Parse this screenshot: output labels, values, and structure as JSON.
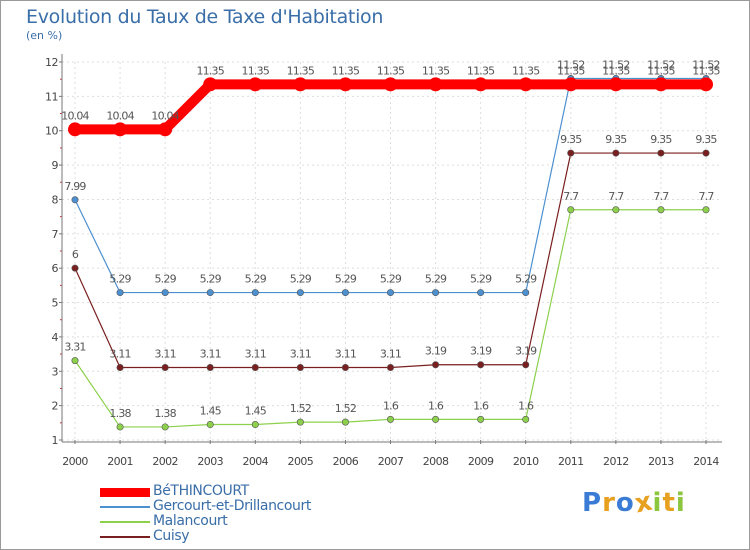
{
  "chart_data": {
    "type": "line",
    "title": "Evolution du Taux de Taxe d'Habitation",
    "ylabel": "(en %)",
    "x": [
      "2000",
      "2001",
      "2002",
      "2003",
      "2004",
      "2005",
      "2006",
      "2007",
      "2008",
      "2009",
      "2010",
      "2011",
      "2012",
      "2013",
      "2014"
    ],
    "yticks": [
      "1",
      "2",
      "3",
      "4",
      "5",
      "6",
      "7",
      "8",
      "9",
      "10",
      "11",
      "12"
    ],
    "ylim": [
      1,
      12
    ],
    "series": [
      {
        "name": "BéTHINCOURT",
        "color": "#ff0000",
        "values": [
          10.04,
          10.04,
          10.04,
          11.35,
          11.35,
          11.35,
          11.35,
          11.35,
          11.35,
          11.35,
          11.35,
          11.35,
          11.35,
          11.35,
          11.35
        ],
        "labels": [
          "10.04",
          "10.04",
          "10.04",
          "11.35",
          "11.35",
          "11.35",
          "11.35",
          "11.35",
          "11.35",
          "11.35",
          "11.35",
          "11.35",
          "11.35",
          "11.35",
          "11.35"
        ]
      },
      {
        "name": "Gercourt-et-Drillancourt",
        "color": "#4d90d0",
        "values": [
          7.99,
          5.29,
          5.29,
          5.29,
          5.29,
          5.29,
          5.29,
          5.29,
          5.29,
          5.29,
          5.29,
          11.52,
          11.52,
          11.52,
          11.52
        ],
        "labels": [
          "7.99",
          "5.29",
          "5.29",
          "5.29",
          "5.29",
          "5.29",
          "5.29",
          "5.29",
          "5.29",
          "5.29",
          "5.29",
          "11.52",
          "11.52",
          "11.52",
          "11.52"
        ]
      },
      {
        "name": "Malancourt",
        "color": "#8cd04c",
        "values": [
          3.31,
          1.38,
          1.38,
          1.45,
          1.45,
          1.52,
          1.52,
          1.6,
          1.6,
          1.6,
          1.6,
          7.7,
          7.7,
          7.7,
          7.7
        ],
        "labels": [
          "3.31",
          "1.38",
          "1.38",
          "1.45",
          "1.45",
          "1.52",
          "1.52",
          "1.6",
          "1.6",
          "1.6",
          "1.6",
          "7.7",
          "7.7",
          "7.7",
          "7.7"
        ]
      },
      {
        "name": "Cuisy",
        "color": "#7a1f1f",
        "values": [
          6,
          3.11,
          3.11,
          3.11,
          3.11,
          3.11,
          3.11,
          3.11,
          3.19,
          3.19,
          3.19,
          9.35,
          9.35,
          9.35,
          9.35
        ],
        "labels": [
          "6",
          "3.11",
          "3.11",
          "3.11",
          "3.11",
          "3.11",
          "3.11",
          "3.11",
          "3.19",
          "3.19",
          "3.19",
          "9.35",
          "9.35",
          "9.35",
          "9.35"
        ]
      }
    ]
  },
  "logo": {
    "letters": [
      "P",
      "r",
      "o",
      "x",
      "i",
      "t",
      "i"
    ],
    "colors": [
      "#3a7bd5",
      "#e8a020",
      "#3a7bd5",
      "#e8a020",
      "#8cc63f",
      "#e8a020",
      "#8cc63f"
    ]
  }
}
